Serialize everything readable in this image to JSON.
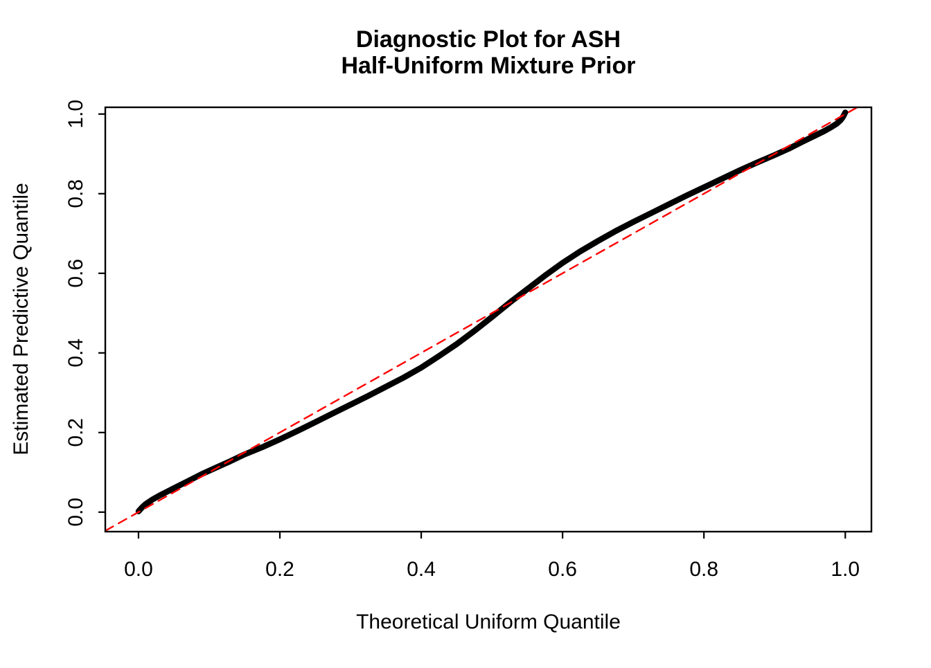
{
  "page": {
    "background": "#FFFFFF"
  },
  "title": {
    "line1": "Diagnostic Plot for ASH",
    "line2": "Half-Uniform Mixture Prior"
  },
  "axes": {
    "x_label": "Theoretical Uniform Quantile",
    "y_label": "Estimated Predictive Quantile"
  },
  "colors": {
    "curve": "#000000",
    "reference_line": "#FF0000",
    "background": "#FFFFFF"
  },
  "chart_data": {
    "type": "line",
    "title": "Diagnostic Plot for ASH\nHalf-Uniform Mixture Prior",
    "xlabel": "Theoretical Uniform Quantile",
    "ylabel": "Estimated Predictive Quantile",
    "grid": false,
    "legend": "none",
    "xlim": [
      -0.047,
      1.037
    ],
    "ylim": [
      -0.049,
      1.017
    ],
    "x_ticks": [
      "0.0",
      "0.2",
      "0.4",
      "0.6",
      "0.8",
      "1.0"
    ],
    "y_ticks": [
      "0.0",
      "0.2",
      "0.4",
      "0.6",
      "0.8",
      "1.0"
    ],
    "series": [
      {
        "name": "estimated-predictive-quantiles",
        "type": "points-curve",
        "color": "#000000",
        "line_width": 8.5,
        "x": [
          0.0,
          0.005,
          0.01,
          0.02,
          0.03,
          0.04,
          0.05,
          0.07,
          0.09,
          0.11,
          0.13,
          0.15,
          0.175,
          0.2,
          0.225,
          0.25,
          0.275,
          0.3,
          0.325,
          0.35,
          0.375,
          0.4,
          0.425,
          0.45,
          0.475,
          0.5,
          0.525,
          0.55,
          0.575,
          0.6,
          0.625,
          0.65,
          0.675,
          0.7,
          0.725,
          0.75,
          0.775,
          0.8,
          0.825,
          0.85,
          0.875,
          0.9,
          0.92,
          0.94,
          0.955,
          0.97,
          0.98,
          0.988,
          0.993,
          0.996,
          0.998,
          1.0
        ],
        "y": [
          0.002,
          0.012,
          0.02,
          0.032,
          0.042,
          0.051,
          0.06,
          0.078,
          0.096,
          0.112,
          0.128,
          0.145,
          0.163,
          0.183,
          0.204,
          0.226,
          0.248,
          0.27,
          0.292,
          0.315,
          0.338,
          0.363,
          0.392,
          0.422,
          0.455,
          0.49,
          0.526,
          0.56,
          0.594,
          0.626,
          0.655,
          0.681,
          0.706,
          0.729,
          0.751,
          0.773,
          0.795,
          0.816,
          0.837,
          0.858,
          0.878,
          0.897,
          0.913,
          0.931,
          0.944,
          0.957,
          0.967,
          0.976,
          0.984,
          0.991,
          0.997,
          1.004
        ]
      },
      {
        "name": "identity-reference-line",
        "type": "dashed-line",
        "color": "#FF0000",
        "line_width": 2.4,
        "x": [
          -0.047,
          1.017
        ],
        "y": [
          -0.047,
          1.017
        ]
      }
    ]
  }
}
